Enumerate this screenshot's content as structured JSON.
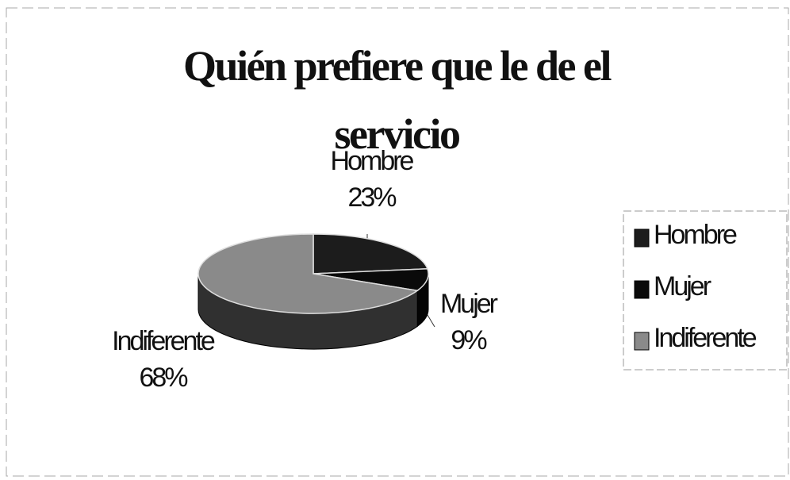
{
  "chart_data": {
    "type": "pie",
    "title": "Quién prefiere que le de el servicio",
    "categories": [
      "Hombre",
      "Mujer",
      "Indiferente"
    ],
    "values": [
      23,
      9,
      68
    ],
    "value_labels": [
      "23%",
      "9%",
      "68%"
    ],
    "colors": [
      "#1c1c1c",
      "#0a0a0a",
      "#8a8a8a"
    ],
    "legend": "right"
  }
}
